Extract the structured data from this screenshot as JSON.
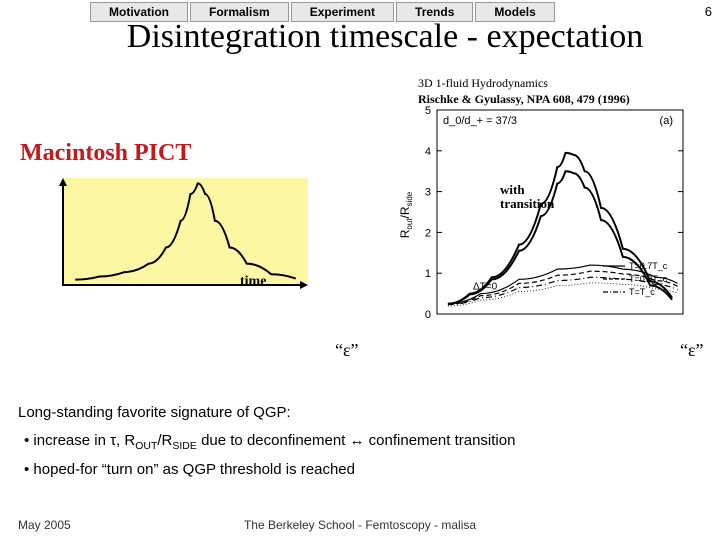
{
  "nav": {
    "tabs": [
      "Motivation",
      "Formalism",
      "Experiment",
      "Trends",
      "Models"
    ]
  },
  "page_number": "6",
  "title": "Disintegration timescale - expectation",
  "citation": {
    "line1": "3D 1-fluid Hydrodynamics",
    "line2": "Rischke & Gyulassy, NPA 608, 479 (1996)"
  },
  "mac_pict": "Macintosh PICT",
  "left_chart": {
    "bg_color": "#fdf7a3",
    "axis_color": "#000000",
    "curve_color": "#000000",
    "curve_points": [
      [
        0.05,
        0.05
      ],
      [
        0.15,
        0.08
      ],
      [
        0.25,
        0.12
      ],
      [
        0.35,
        0.2
      ],
      [
        0.42,
        0.35
      ],
      [
        0.48,
        0.6
      ],
      [
        0.52,
        0.85
      ],
      [
        0.55,
        0.95
      ],
      [
        0.58,
        0.85
      ],
      [
        0.62,
        0.6
      ],
      [
        0.68,
        0.35
      ],
      [
        0.75,
        0.2
      ],
      [
        0.85,
        0.1
      ],
      [
        0.95,
        0.06
      ]
    ],
    "xlabel": "time"
  },
  "right_chart": {
    "type": "line",
    "xlim": [
      0,
      4.5
    ],
    "ylim": [
      0,
      5
    ],
    "ytick_step": 1,
    "ylabel": "R_out/R_side",
    "panel_label": "(a)",
    "header_label": "d_0/d_+ = 37/3",
    "delta_t_label": "ΔT=0",
    "annotation": "with\ntransition",
    "legend": [
      {
        "label": "T=0.7T_c",
        "dash": "solid"
      },
      {
        "label": "T=0.9T_c",
        "dash": "dash"
      },
      {
        "label": "T=T_c",
        "dash": "dashdot"
      }
    ],
    "curves": {
      "upper_band_outer": [
        [
          0.2,
          0.25
        ],
        [
          0.6,
          0.5
        ],
        [
          1.0,
          0.9
        ],
        [
          1.5,
          1.7
        ],
        [
          1.9,
          2.7
        ],
        [
          2.2,
          3.6
        ],
        [
          2.35,
          3.95
        ],
        [
          2.5,
          3.9
        ],
        [
          2.7,
          3.5
        ],
        [
          3.0,
          2.6
        ],
        [
          3.4,
          1.6
        ],
        [
          3.9,
          0.8
        ],
        [
          4.3,
          0.4
        ]
      ],
      "upper_band_inner": [
        [
          0.2,
          0.25
        ],
        [
          0.6,
          0.48
        ],
        [
          1.0,
          0.85
        ],
        [
          1.5,
          1.55
        ],
        [
          1.9,
          2.4
        ],
        [
          2.2,
          3.2
        ],
        [
          2.35,
          3.5
        ],
        [
          2.5,
          3.45
        ],
        [
          2.7,
          3.1
        ],
        [
          3.0,
          2.3
        ],
        [
          3.4,
          1.4
        ],
        [
          3.9,
          0.7
        ],
        [
          4.3,
          0.35
        ]
      ],
      "lower_solid": [
        [
          0.2,
          0.25
        ],
        [
          0.8,
          0.5
        ],
        [
          1.5,
          0.85
        ],
        [
          2.2,
          1.1
        ],
        [
          2.8,
          1.2
        ],
        [
          3.4,
          1.1
        ],
        [
          4.0,
          0.9
        ],
        [
          4.4,
          0.75
        ]
      ],
      "lower_dash": [
        [
          0.2,
          0.24
        ],
        [
          0.8,
          0.45
        ],
        [
          1.5,
          0.75
        ],
        [
          2.2,
          0.95
        ],
        [
          2.8,
          1.05
        ],
        [
          3.4,
          0.98
        ],
        [
          4.0,
          0.82
        ],
        [
          4.4,
          0.68
        ]
      ],
      "lower_dashdot": [
        [
          0.2,
          0.23
        ],
        [
          0.8,
          0.4
        ],
        [
          1.5,
          0.65
        ],
        [
          2.2,
          0.82
        ],
        [
          2.8,
          0.9
        ],
        [
          3.4,
          0.85
        ],
        [
          4.0,
          0.72
        ],
        [
          4.4,
          0.6
        ]
      ]
    },
    "colors": {
      "axis": "#000000",
      "curve": "#000000",
      "tick": "#000000"
    }
  },
  "eps_left": "“ε”",
  "eps_right": "“ε”",
  "bullets": {
    "intro": "Long-standing favorite signature of QGP:",
    "b1_prefix": "• increase in τ, R",
    "b1_sub1": "OUT",
    "b1_mid": "/R",
    "b1_sub2": "SIDE",
    "b1_suffix": " due to deconfinement ↔ confinement transition",
    "b2": "• hoped-for “turn on” as QGP threshold is reached"
  },
  "footer": {
    "left": "May 2005",
    "center": "The Berkeley School - Femtoscopy - malisa"
  }
}
